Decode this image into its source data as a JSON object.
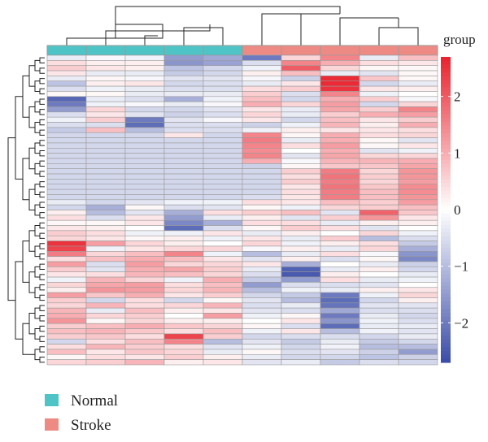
{
  "chart_data": {
    "type": "heatmap",
    "title": "",
    "annotation_title": "group",
    "n_rows": 60,
    "columns": [
      {
        "group": "Normal"
      },
      {
        "group": "Normal"
      },
      {
        "group": "Normal"
      },
      {
        "group": "Normal"
      },
      {
        "group": "Normal"
      },
      {
        "group": "Stroke"
      },
      {
        "group": "Stroke"
      },
      {
        "group": "Stroke"
      },
      {
        "group": "Stroke"
      },
      {
        "group": "Stroke"
      }
    ],
    "groups": [
      {
        "name": "Normal",
        "color": "#4fc4c6"
      },
      {
        "name": "Stroke",
        "color": "#ee8a84"
      }
    ],
    "color_scale": {
      "min": -2.7,
      "max": 2.7,
      "low_color": "#3a4ca8",
      "mid_color": "#ffffff",
      "high_color": "#e9222d",
      "ticks": [
        -2,
        -1,
        0,
        1,
        2
      ],
      "tick_labels": [
        "−2",
        "−1",
        "0",
        "1",
        "2"
      ]
    },
    "values": [
      [
        -0.3,
        -0.1,
        -0.2,
        -1.5,
        -1.3,
        -2.0,
        0.5,
        1.5,
        -0.3,
        0.8
      ],
      [
        0.4,
        0.2,
        0.2,
        -1.6,
        -1.4,
        -0.5,
        1.5,
        1.0,
        0.4,
        0.3
      ],
      [
        0.6,
        0.3,
        0.2,
        -0.9,
        -0.6,
        -0.2,
        2.0,
        0.5,
        0.1,
        0.1
      ],
      [
        0.3,
        -0.3,
        -0.3,
        -0.8,
        -0.6,
        0.2,
        0.8,
        -0.3,
        -0.4,
        0.1
      ],
      [
        -0.3,
        0.1,
        -0.1,
        -0.4,
        -0.4,
        -0.1,
        -0.7,
        2.6,
        0.7,
        0.1
      ],
      [
        -0.9,
        0.2,
        0.3,
        -0.6,
        -0.5,
        -0.3,
        0.3,
        2.6,
        -0.6,
        -0.3
      ],
      [
        -0.5,
        -0.2,
        -0.3,
        -0.5,
        -0.5,
        0.4,
        0.6,
        2.5,
        0.3,
        0.2
      ],
      [
        0.1,
        0.1,
        -0.3,
        -0.3,
        -0.3,
        0.6,
        -0.5,
        1.5,
        -0.2,
        0.0
      ],
      [
        -2.3,
        -0.3,
        -0.5,
        -1.2,
        -0.2,
        0.8,
        -0.6,
        1.0,
        0.6,
        -0.1
      ],
      [
        -2.0,
        -0.2,
        -0.1,
        -0.3,
        -0.1,
        1.0,
        0.5,
        1.2,
        -0.6,
        0.5
      ],
      [
        -1.5,
        0.5,
        -0.6,
        -0.6,
        -0.4,
        0.3,
        -0.3,
        1.1,
        0.6,
        1.5
      ],
      [
        -0.5,
        0.3,
        -0.4,
        -0.7,
        -0.5,
        0.5,
        -0.3,
        0.6,
        1.0,
        1.2
      ],
      [
        -0.2,
        0.6,
        -2.0,
        -0.4,
        -0.1,
        0.3,
        -0.6,
        0.8,
        0.3,
        0.6
      ],
      [
        -0.5,
        -0.5,
        -2.2,
        -0.5,
        -0.5,
        -0.7,
        -0.2,
        0.9,
        0.2,
        1.0
      ],
      [
        -0.8,
        0.8,
        -1.0,
        -0.5,
        -0.5,
        -0.2,
        0.2,
        0.3,
        0.3,
        0.4
      ],
      [
        -0.6,
        -0.6,
        -0.6,
        0.3,
        -0.6,
        1.5,
        0.1,
        1.0,
        0.4,
        0.5
      ],
      [
        -0.6,
        -0.6,
        -0.6,
        -0.6,
        -0.6,
        1.6,
        -0.3,
        1.0,
        0.1,
        -0.4
      ],
      [
        -0.6,
        -0.6,
        -0.6,
        -0.6,
        -0.6,
        1.5,
        0.4,
        1.2,
        0.1,
        0.3
      ],
      [
        -0.6,
        -0.6,
        -0.6,
        -0.6,
        -0.6,
        1.4,
        0.0,
        1.0,
        -0.4,
        -0.2
      ],
      [
        -0.6,
        -0.6,
        -0.6,
        -0.6,
        -0.6,
        1.5,
        -0.4,
        1.1,
        0.5,
        0.5
      ],
      [
        -0.6,
        -0.6,
        -0.6,
        -0.6,
        -0.6,
        1.0,
        -0.1,
        0.9,
        0.9,
        1.0
      ],
      [
        -0.6,
        -0.6,
        -0.6,
        -0.6,
        -0.6,
        -0.7,
        0.1,
        0.7,
        0.7,
        1.1
      ],
      [
        -0.6,
        -0.6,
        -0.6,
        -0.6,
        -0.6,
        -0.6,
        0.6,
        1.6,
        0.5,
        1.3
      ],
      [
        -0.6,
        -0.6,
        -0.6,
        -0.6,
        -0.6,
        -0.6,
        0.4,
        1.7,
        0.6,
        1.3
      ],
      [
        -0.6,
        -0.6,
        -0.6,
        -0.6,
        -0.6,
        -0.6,
        0.6,
        1.6,
        0.5,
        1.2
      ],
      [
        -0.6,
        -0.6,
        -0.6,
        -0.6,
        -0.6,
        -0.6,
        0.3,
        1.7,
        0.7,
        1.4
      ],
      [
        -0.6,
        -0.6,
        -0.6,
        -0.6,
        -0.6,
        -0.6,
        0.4,
        1.6,
        0.8,
        1.4
      ],
      [
        -0.6,
        -0.6,
        -0.6,
        -0.6,
        -0.6,
        -0.5,
        0.3,
        1.6,
        0.8,
        1.3
      ],
      [
        -0.3,
        -0.6,
        -0.4,
        -0.2,
        -0.2,
        0.4,
        0.3,
        0.8,
        0.6,
        1.2
      ],
      [
        -0.6,
        -1.2,
        0.1,
        -0.5,
        -0.4,
        0.1,
        -0.2,
        0.5,
        0.6,
        0.8
      ],
      [
        0.2,
        -1.0,
        -0.4,
        -1.2,
        0.4,
        0.6,
        0.8,
        -0.4,
        1.9,
        0.7
      ],
      [
        0.4,
        -0.5,
        0.3,
        -1.5,
        -0.3,
        0.2,
        -0.4,
        0.6,
        1.3,
        0.3
      ],
      [
        0.1,
        0.1,
        0.3,
        -1.8,
        -1.2,
        0.4,
        0.4,
        -0.3,
        0.2,
        0.2
      ],
      [
        0.3,
        0.2,
        0.0,
        -2.2,
        -0.5,
        0.1,
        0.6,
        0.4,
        -0.4,
        0.0
      ],
      [
        0.6,
        0.4,
        -0.2,
        -0.2,
        0.3,
        -0.3,
        0.2,
        0.0,
        0.5,
        -0.2
      ],
      [
        0.5,
        0.3,
        0.1,
        0.2,
        -0.2,
        0.3,
        -0.3,
        0.6,
        -1.0,
        -0.5
      ],
      [
        2.5,
        1.2,
        0.5,
        0.2,
        0.0,
        0.5,
        -0.2,
        0.2,
        0.4,
        -0.8
      ],
      [
        2.3,
        -0.2,
        0.3,
        0.5,
        0.5,
        -0.1,
        0.2,
        -0.3,
        0.5,
        -1.2
      ],
      [
        1.6,
        0.5,
        0.8,
        1.5,
        -0.2,
        -1.0,
        -0.3,
        0.4,
        -0.1,
        -1.6
      ],
      [
        0.4,
        0.8,
        1.0,
        0.8,
        0.3,
        -0.4,
        0.2,
        -0.5,
        0.1,
        -1.8
      ],
      [
        1.2,
        -0.5,
        1.2,
        0.5,
        0.5,
        0.3,
        -1.2,
        0.0,
        -0.3,
        -0.7
      ],
      [
        0.6,
        -0.4,
        1.0,
        1.1,
        0.6,
        -0.3,
        -2.4,
        -0.3,
        0.2,
        -0.6
      ],
      [
        0.3,
        0.4,
        0.9,
        0.8,
        0.5,
        -0.5,
        -2.5,
        0.2,
        0.0,
        -0.3
      ],
      [
        -0.2,
        0.9,
        0.5,
        -0.2,
        1.0,
        -0.8,
        -1.5,
        0.4,
        -0.3,
        -0.2
      ],
      [
        0.5,
        1.1,
        1.2,
        0.4,
        0.8,
        -1.5,
        -0.5,
        -0.5,
        -0.4,
        0.0
      ],
      [
        0.2,
        1.3,
        1.2,
        0.5,
        0.9,
        -1.0,
        -0.2,
        -0.3,
        0.2,
        0.3
      ],
      [
        1.2,
        0.7,
        1.0,
        0.3,
        0.6,
        -0.6,
        -0.8,
        -2.0,
        -0.2,
        0.5
      ],
      [
        0.6,
        -0.6,
        0.4,
        -0.6,
        0.1,
        -0.4,
        -1.0,
        -2.2,
        -0.6,
        0.2
      ],
      [
        0.5,
        0.9,
        0.4,
        0.5,
        0.9,
        -0.5,
        -0.3,
        -2.1,
        -0.4,
        -0.4
      ],
      [
        0.9,
        -0.3,
        0.8,
        0.2,
        0.3,
        -0.4,
        -0.5,
        -1.3,
        -0.5,
        -0.5
      ],
      [
        1.0,
        0.5,
        0.6,
        0.0,
        1.2,
        -0.2,
        0.1,
        -2.0,
        -0.3,
        -0.6
      ],
      [
        1.3,
        0.1,
        0.5,
        0.2,
        0.2,
        0.0,
        0.3,
        -1.6,
        -0.2,
        -0.5
      ],
      [
        0.6,
        0.8,
        1.0,
        0.7,
        0.5,
        0.1,
        -0.5,
        -2.2,
        -0.3,
        -0.3
      ],
      [
        0.8,
        0.9,
        0.7,
        0.4,
        0.8,
        -0.2,
        0.3,
        -1.0,
        -0.2,
        -0.4
      ],
      [
        0.6,
        0.7,
        0.4,
        2.3,
        0.6,
        -0.6,
        -0.5,
        -0.5,
        -0.6,
        -0.3
      ],
      [
        -0.6,
        0.4,
        0.8,
        1.5,
        -1.0,
        -0.4,
        -0.8,
        -0.3,
        -0.8,
        -0.6
      ],
      [
        0.4,
        0.9,
        0.6,
        0.4,
        -0.4,
        -0.2,
        -0.6,
        -0.2,
        -1.0,
        -1.0
      ],
      [
        0.8,
        0.3,
        0.7,
        0.5,
        -0.3,
        0.1,
        -0.5,
        -0.4,
        -0.7,
        -1.5
      ],
      [
        0.1,
        0.4,
        0.3,
        0.6,
        0.2,
        -0.3,
        -0.6,
        -0.6,
        -0.9,
        -0.7
      ],
      [
        0.5,
        0.6,
        0.9,
        0.2,
        0.3,
        -0.4,
        -0.3,
        -0.8,
        -0.5,
        -0.6
      ]
    ]
  }
}
